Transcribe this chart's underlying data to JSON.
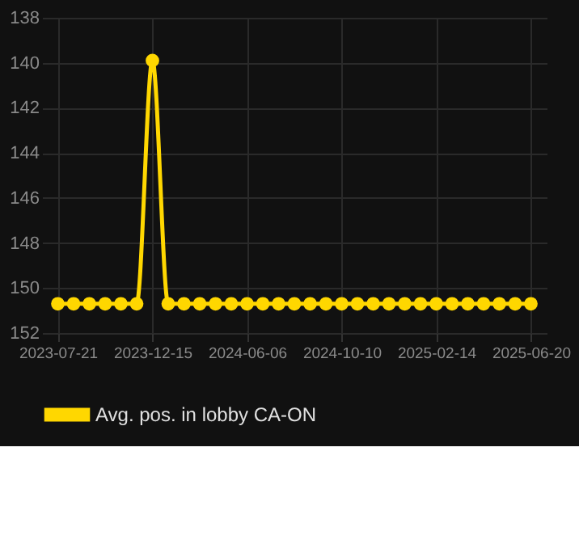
{
  "chart_data": {
    "type": "line",
    "categories": [
      "2023-07-21",
      null,
      null,
      null,
      null,
      null,
      "2023-12-15",
      null,
      null,
      null,
      null,
      null,
      "2024-06-06",
      null,
      null,
      null,
      null,
      null,
      "2024-10-10",
      null,
      null,
      null,
      null,
      null,
      "2025-02-14",
      null,
      null,
      null,
      null,
      null,
      "2025-06-20"
    ],
    "series": [
      {
        "name": "Avg. pos. in lobby CA-ON",
        "color": "#ffd700",
        "values": [
          150.7,
          150.7,
          150.7,
          150.7,
          150.7,
          150.7,
          139.9,
          150.7,
          150.7,
          150.7,
          150.7,
          150.7,
          150.7,
          150.7,
          150.7,
          150.7,
          150.7,
          150.7,
          150.7,
          150.7,
          150.7,
          150.7,
          150.7,
          150.7,
          150.7,
          150.7,
          150.7,
          150.7,
          150.7,
          150.7,
          150.7
        ]
      }
    ],
    "ylim": [
      152,
      138
    ],
    "yticks": [
      138,
      140,
      142,
      144,
      146,
      148,
      150,
      152
    ],
    "grid": true,
    "legend": "bottom",
    "marker": "circle",
    "line_style": "solid"
  }
}
